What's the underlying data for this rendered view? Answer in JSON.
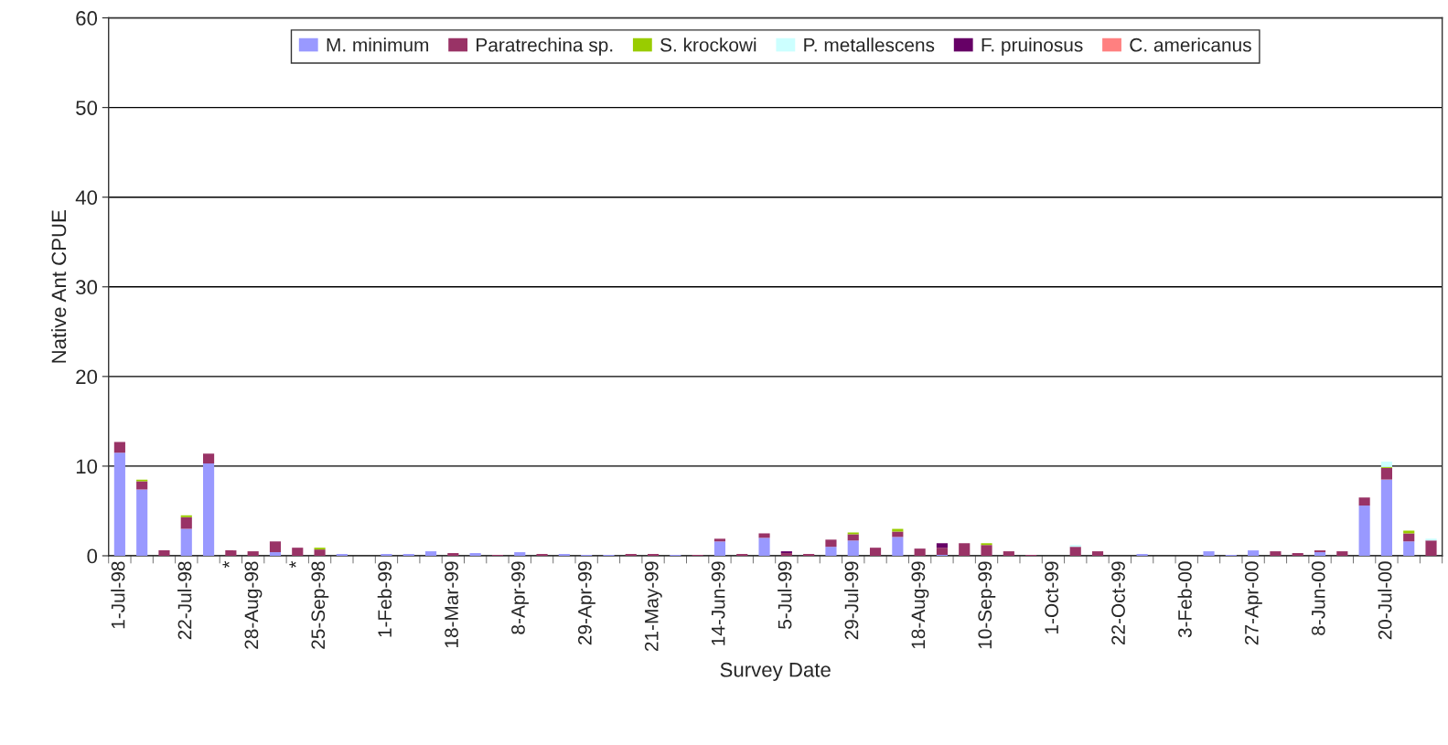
{
  "chart_data": {
    "type": "bar",
    "stacked": true,
    "xlabel": "Survey Date",
    "ylabel": "Native Ant CPUE",
    "categories": [
      "1-Jul-98",
      null,
      null,
      "22-Jul-98",
      null,
      "*",
      "28-Aug-98",
      null,
      "*",
      "25-Sep-98",
      null,
      null,
      "1-Feb-99",
      null,
      null,
      "18-Mar-99",
      null,
      null,
      "8-Apr-99",
      null,
      null,
      "29-Apr-99",
      null,
      null,
      "21-May-99",
      null,
      null,
      "14-Jun-99",
      null,
      null,
      "5-Jul-99",
      null,
      null,
      "29-Jul-99",
      null,
      null,
      "18-Aug-99",
      null,
      null,
      "10-Sep-99",
      null,
      null,
      "1-Oct-99",
      null,
      null,
      "22-Oct-99",
      null,
      null,
      "3-Feb-00",
      null,
      null,
      "27-Apr-00",
      null,
      null,
      "8-Jun-00",
      null,
      null,
      "20-Jul-00",
      null,
      null
    ],
    "series": [
      {
        "name": "M. minimum",
        "color": "#9999ff",
        "values": [
          11.5,
          7.4,
          0,
          3.0,
          10.3,
          0,
          0,
          0.4,
          0,
          0,
          0.2,
          0,
          0.2,
          0.2,
          0.5,
          0,
          0.3,
          0,
          0.4,
          0,
          0.2,
          0.1,
          0.1,
          0,
          0,
          0.1,
          0,
          1.6,
          0,
          2.0,
          0,
          0,
          1.0,
          1.7,
          0,
          2.1,
          0,
          0.1,
          0,
          0,
          0,
          0,
          0,
          0,
          0,
          0,
          0.2,
          0,
          0,
          0.5,
          0.1,
          0.6,
          0,
          0,
          0.4,
          0,
          5.6,
          8.5,
          1.6,
          0
        ]
      },
      {
        "name": "Paratrechina sp.",
        "color": "#993366",
        "values": [
          1.2,
          0.9,
          0.6,
          1.3,
          1.1,
          0.6,
          0.5,
          1.2,
          0.9,
          0.7,
          0,
          0,
          0,
          0,
          0,
          0.3,
          0,
          0.1,
          0,
          0.2,
          0,
          0,
          0,
          0.2,
          0.2,
          0,
          0.1,
          0.3,
          0.2,
          0.5,
          0.3,
          0.2,
          0.8,
          0.7,
          0.9,
          0.6,
          0.8,
          0.8,
          1.4,
          1.2,
          0.5,
          0.1,
          0,
          1.0,
          0.5,
          0,
          0,
          0,
          0,
          0,
          0,
          0,
          0.5,
          0.3,
          0.2,
          0.5,
          0.9,
          1.3,
          0.9,
          1.7
        ]
      },
      {
        "name": "S. krockowi",
        "color": "#99cc00",
        "values": [
          0,
          0.2,
          0,
          0.2,
          0,
          0,
          0,
          0,
          0,
          0.2,
          0,
          0,
          0,
          0,
          0,
          0,
          0,
          0,
          0,
          0,
          0,
          0,
          0,
          0,
          0,
          0,
          0,
          0,
          0,
          0,
          0,
          0,
          0,
          0.2,
          0,
          0.3,
          0,
          0,
          0,
          0.2,
          0,
          0,
          0,
          0,
          0,
          0,
          0,
          0,
          0,
          0,
          0,
          0,
          0,
          0,
          0,
          0,
          0,
          0.1,
          0.3,
          0
        ]
      },
      {
        "name": "P. metallescens",
        "color": "#ccffff",
        "values": [
          0,
          0,
          0,
          0,
          0,
          0,
          0,
          0,
          0,
          0,
          0,
          0,
          0,
          0,
          0,
          0,
          0,
          0,
          0,
          0,
          0,
          0,
          0,
          0,
          0,
          0,
          0,
          0,
          0,
          0,
          0,
          0,
          0,
          0,
          0,
          0,
          0,
          0,
          0,
          0,
          0,
          0,
          0,
          0.2,
          0,
          0,
          0,
          0,
          0,
          0,
          0,
          0,
          0,
          0,
          0,
          0,
          0,
          0.6,
          0,
          0.2
        ]
      },
      {
        "name": "F. pruinosus",
        "color": "#660066",
        "values": [
          0,
          0,
          0,
          0,
          0,
          0,
          0,
          0,
          0,
          0,
          0,
          0,
          0,
          0,
          0,
          0,
          0,
          0,
          0,
          0,
          0,
          0,
          0,
          0,
          0,
          0,
          0,
          0,
          0,
          0,
          0.2,
          0,
          0,
          0,
          0,
          0,
          0,
          0.5,
          0,
          0,
          0,
          0,
          0,
          0,
          0,
          0,
          0,
          0,
          0,
          0,
          0,
          0,
          0,
          0,
          0,
          0,
          0,
          0,
          0,
          0
        ]
      },
      {
        "name": "C. americanus",
        "color": "#ff8080",
        "values": [
          0,
          0,
          0,
          0,
          0,
          0,
          0,
          0,
          0,
          0,
          0,
          0,
          0,
          0,
          0,
          0,
          0,
          0,
          0,
          0,
          0,
          0,
          0,
          0,
          0,
          0,
          0,
          0,
          0,
          0,
          0,
          0,
          0,
          0,
          0,
          0,
          0,
          0,
          0,
          0,
          0,
          0,
          0,
          0,
          0,
          0,
          0,
          0,
          0,
          0,
          0,
          0,
          0,
          0,
          0,
          0,
          0,
          0,
          0,
          0
        ]
      }
    ],
    "ylim": [
      0,
      60
    ],
    "yticks": [
      0,
      10,
      20,
      30,
      40,
      50,
      60
    ],
    "grid": "y",
    "legend": "top"
  }
}
